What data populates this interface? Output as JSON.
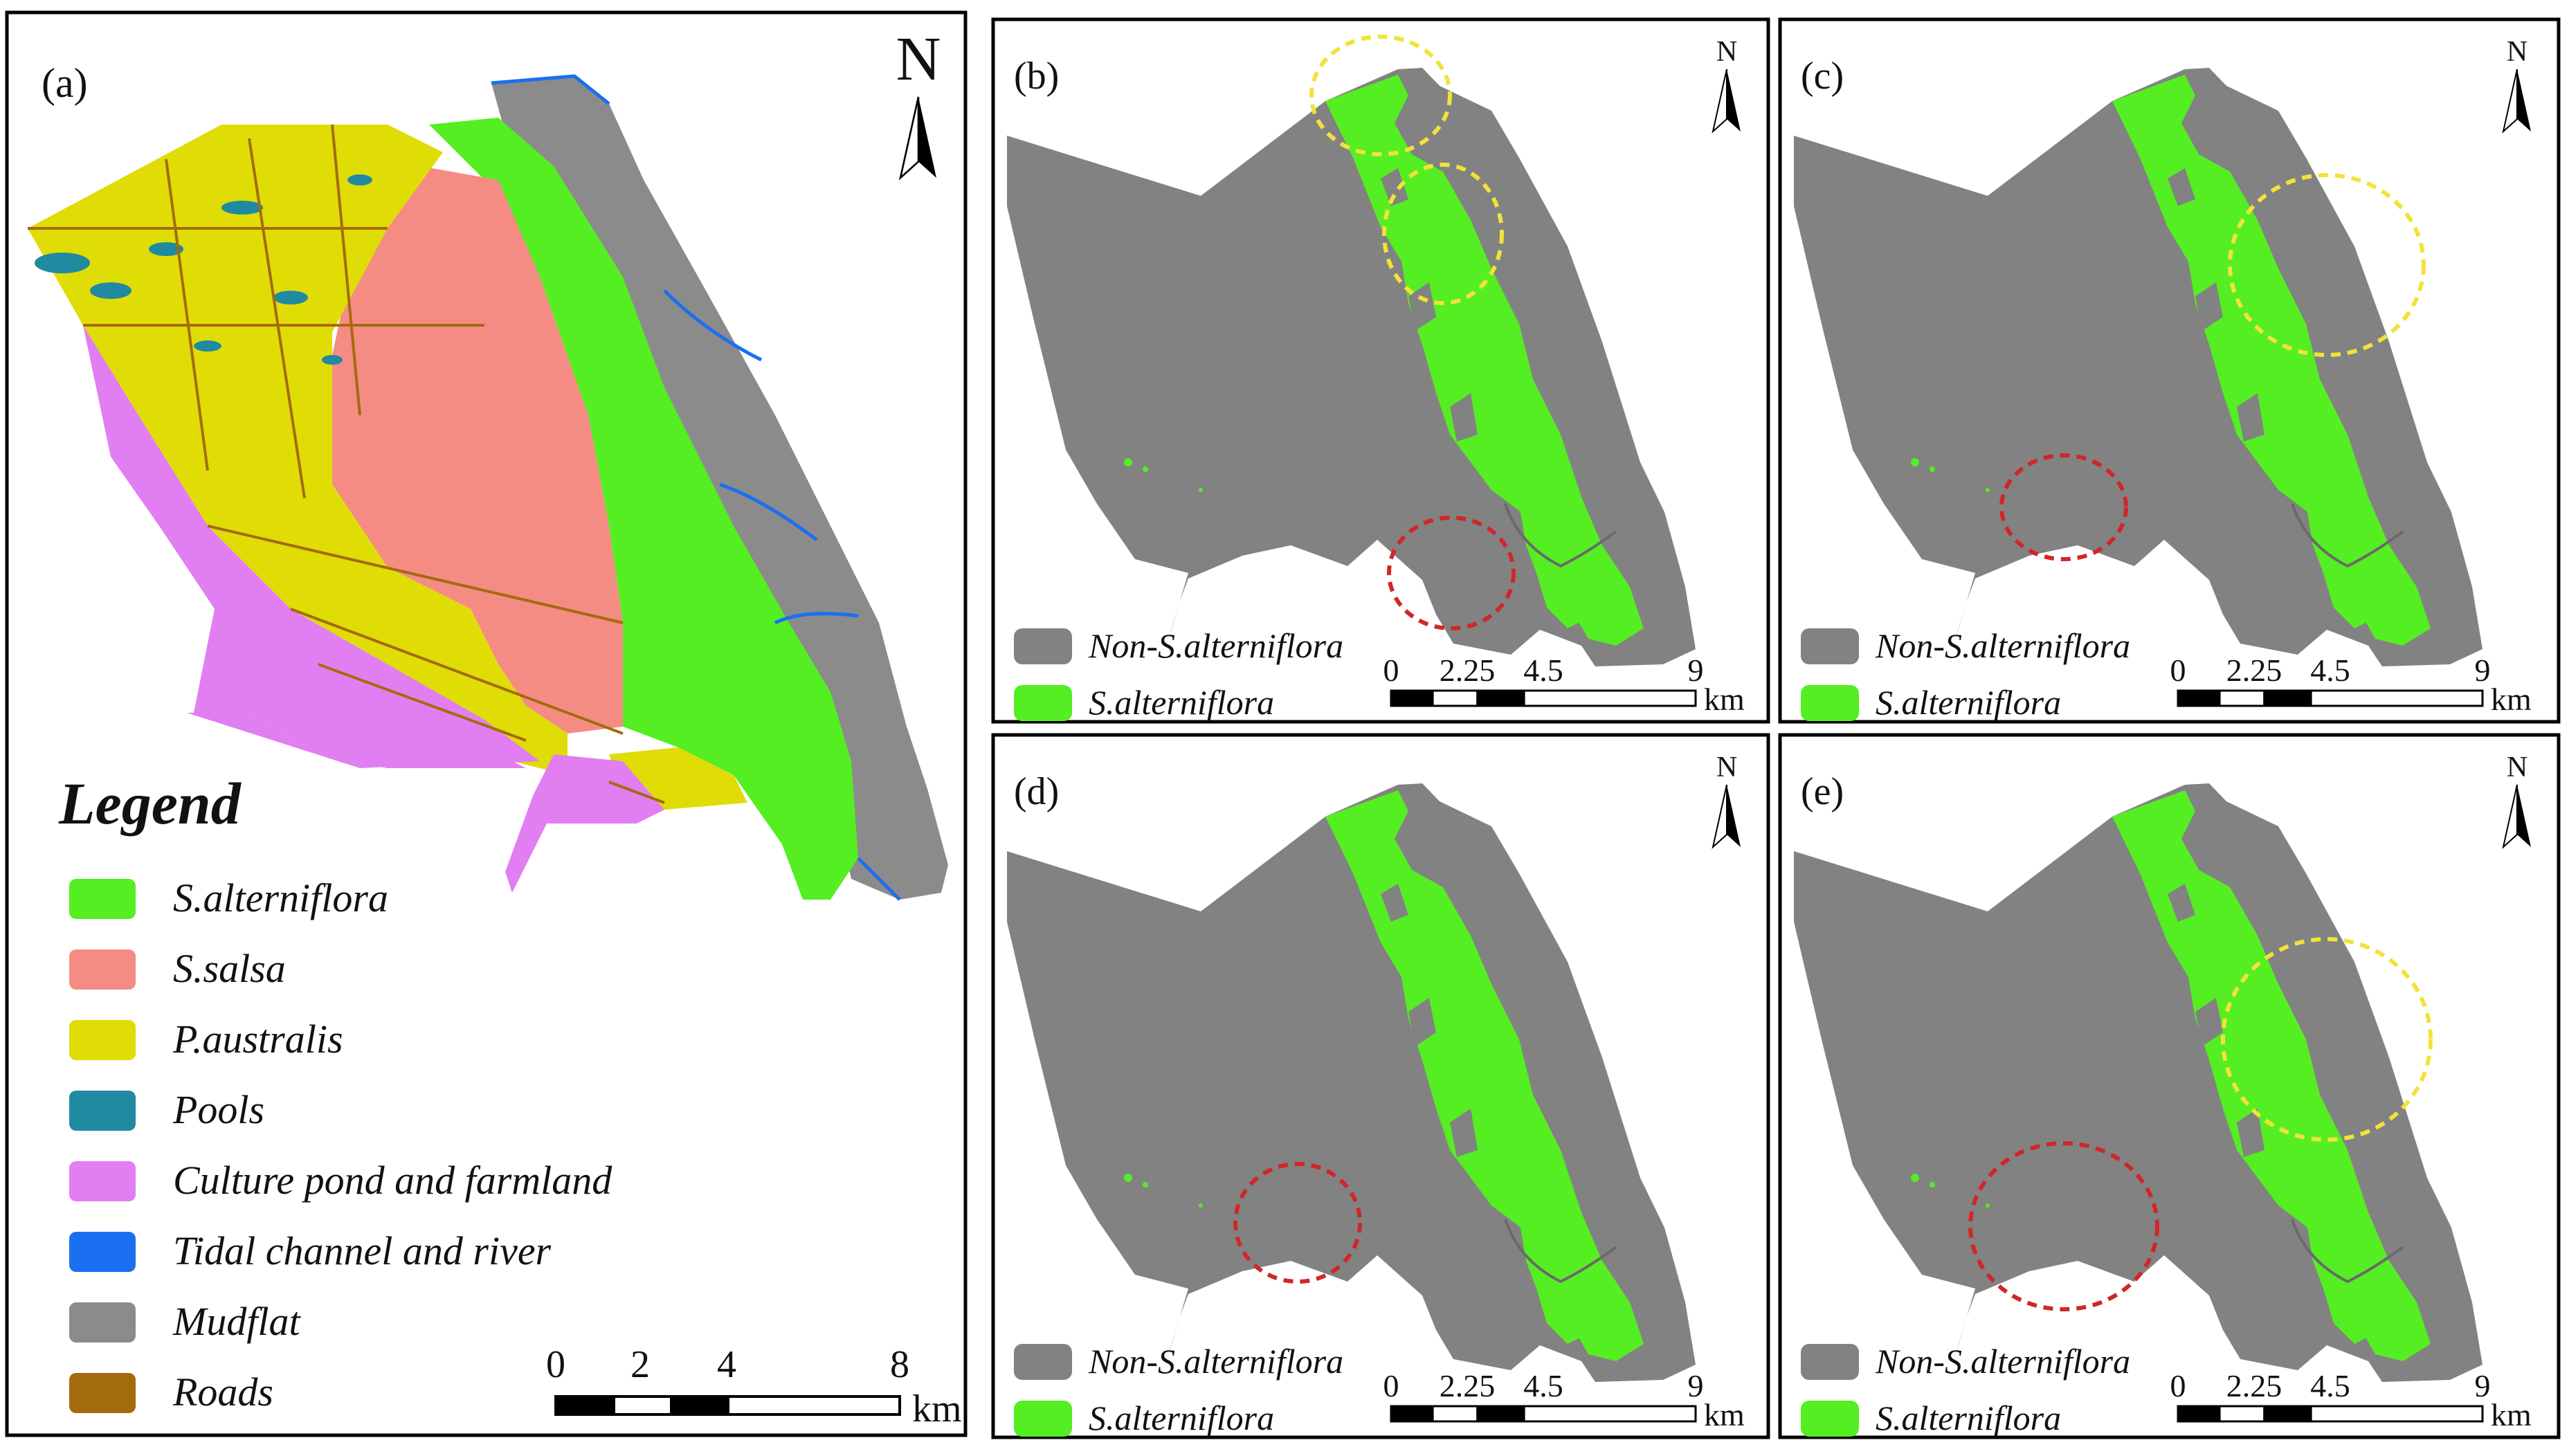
{
  "panel_a": {
    "label": "(a)",
    "north": "N",
    "legend_title": "Legend",
    "legend": [
      {
        "label": "S.alterniflora",
        "color": "#55ee22"
      },
      {
        "label": "S.salsa",
        "color": "#f48c84"
      },
      {
        "label": "P.australis",
        "color": "#e0dc06"
      },
      {
        "label": "Pools",
        "color": "#1f8aa0"
      },
      {
        "label": "Culture pond and farmland",
        "color": "#e07ef2"
      },
      {
        "label": "Tidal channel and river",
        "color": "#1a6ff0"
      },
      {
        "label": "Mudflat",
        "color": "#8b8b8b"
      },
      {
        "label": "Roads",
        "color": "#a46b0c"
      }
    ],
    "scale": {
      "ticks": [
        "0",
        "2",
        "4",
        "8"
      ],
      "unit": "km"
    }
  },
  "small_panels": [
    {
      "label": "(b)",
      "north": "N"
    },
    {
      "label": "(c)",
      "north": "N"
    },
    {
      "label": "(d)",
      "north": "N"
    },
    {
      "label": "(e)",
      "north": "N"
    }
  ],
  "small_legend": [
    {
      "label": "Non-S.alterniflora",
      "color": "#828282"
    },
    {
      "label": "S.alterniflora",
      "color": "#55ee22"
    }
  ],
  "small_scale": {
    "ticks": [
      "0",
      "2.25",
      "4.5",
      "9"
    ],
    "unit": "km"
  },
  "colors": {
    "mudflat": "#8b8b8b",
    "non_alterniflora": "#828282",
    "alterniflora": "#55ee22",
    "salsa": "#f48c84",
    "australis": "#e0dc06",
    "pools": "#1f8aa0",
    "culture": "#e07ef2",
    "channel": "#1a6ff0",
    "roads": "#a46b0c",
    "highlight_yellow": "#f2e23a",
    "highlight_red": "#d0262a"
  }
}
